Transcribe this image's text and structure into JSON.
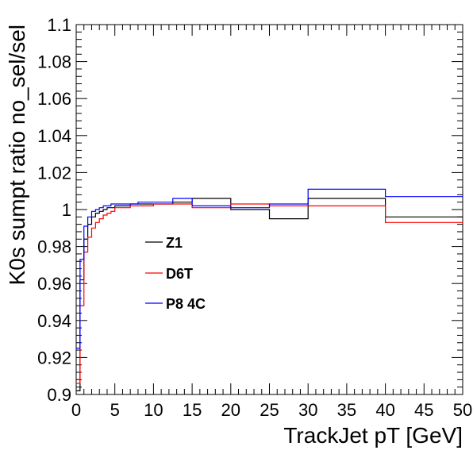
{
  "chart_data": {
    "type": "line",
    "title": "",
    "xlabel": "TrackJet pT [GeV]",
    "ylabel": "K0s sumpt ratio no_sel/sel",
    "xlim": [
      0,
      50
    ],
    "ylim": [
      0.9,
      1.1
    ],
    "x_ticks": [
      "0",
      "5",
      "10",
      "15",
      "20",
      "25",
      "30",
      "35",
      "40",
      "45",
      "50"
    ],
    "y_ticks": [
      "0.9",
      "0.92",
      "0.94",
      "0.96",
      "0.98",
      "1",
      "1.02",
      "1.04",
      "1.06",
      "1.08",
      "1.1"
    ],
    "bin_edges": [
      0,
      0.5,
      1,
      1.5,
      2,
      2.5,
      3,
      3.5,
      4,
      4.5,
      5,
      6,
      7,
      8,
      9,
      10,
      12.5,
      15,
      20,
      25,
      30,
      40,
      50
    ],
    "grid": false,
    "legend_position": "left-center",
    "series": [
      {
        "name": "Z1",
        "color": "#000000",
        "values": [
          0.902,
          0.962,
          0.984,
          0.992,
          0.996,
          0.998,
          0.999,
          1.0,
          1.001,
          1.001,
          1.002,
          1.002,
          1.003,
          1.003,
          1.003,
          1.003,
          1.004,
          1.006,
          1.0,
          0.995,
          1.006,
          0.996
        ]
      },
      {
        "name": "D6T",
        "color": "#ff0000",
        "values": [
          0.906,
          0.948,
          0.977,
          0.985,
          0.99,
          0.993,
          0.995,
          0.997,
          0.998,
          0.999,
          1.001,
          1.001,
          1.002,
          1.002,
          1.002,
          1.003,
          1.003,
          1.001,
          1.003,
          1.002,
          1.002,
          0.993
        ]
      },
      {
        "name": "P8 4C",
        "color": "#0000ff",
        "values": [
          0.925,
          0.973,
          0.991,
          0.996,
          0.999,
          1.0,
          1.001,
          1.002,
          1.002,
          1.003,
          1.003,
          1.003,
          1.003,
          1.004,
          1.004,
          1.004,
          1.006,
          1.002,
          1.001,
          1.003,
          1.011,
          1.007
        ]
      }
    ]
  }
}
